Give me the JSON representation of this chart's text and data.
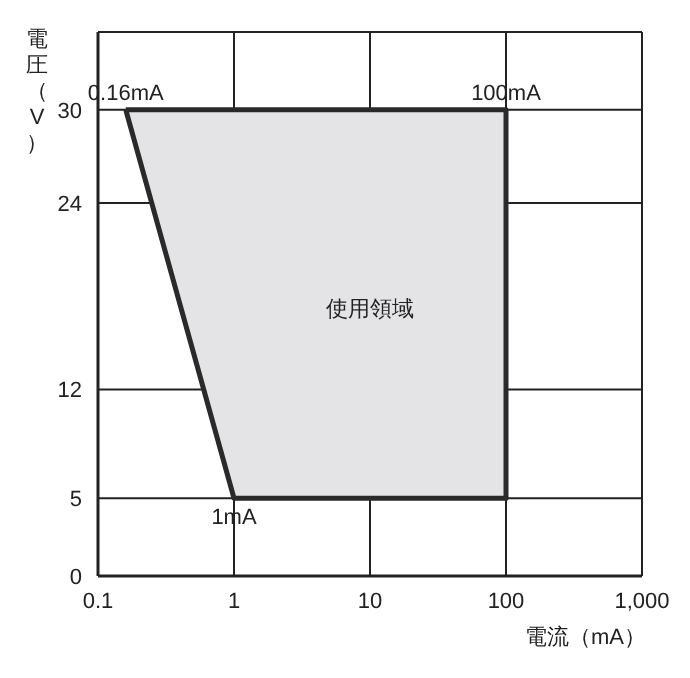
{
  "chart_data": {
    "type": "area",
    "xlabel": "電流（mA）",
    "ylabel": "電圧（V）",
    "log": "x",
    "xlim": [
      0.1,
      1000
    ],
    "xticks": [
      0.1,
      1,
      10,
      100,
      {
        "value": 1000,
        "label": "1,000"
      }
    ],
    "ylim": [
      0,
      35
    ],
    "yticks": [
      0,
      5,
      12,
      24,
      30
    ],
    "grid": true,
    "series": [
      {
        "color": "#e4e4e6",
        "x": [
          0.16,
          100,
          100,
          1,
          0.16
        ],
        "values": [
          30,
          30,
          5,
          5,
          30
        ]
      }
    ],
    "annotations": [
      {
        "text": "0.16mA",
        "x": 0.16,
        "y": 30
      },
      {
        "text": "100mA",
        "x": 100,
        "y": 30
      },
      {
        "text": "1mA",
        "x": 1,
        "y": 5
      },
      "使用領域"
    ]
  }
}
